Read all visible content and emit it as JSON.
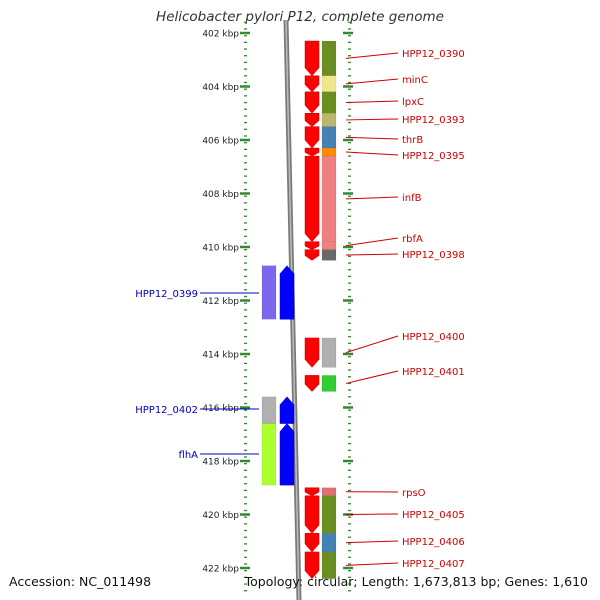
{
  "title": "Helicobacter pylori P12, complete genome",
  "accession": "Accession: NC_011498",
  "topology": "Topology: circular; Length: 1,673,813 bp; Genes: 1,610",
  "colors": {
    "forward_label": "#cc0000",
    "reverse_label": "#0000bb",
    "tick": "#338833",
    "forward_arrow": "#ff0000",
    "reverse_arrow": "#0000ff"
  },
  "scale": {
    "unit": "kbp",
    "ticks": [
      402,
      404,
      406,
      408,
      410,
      412,
      414,
      416,
      418,
      420,
      422
    ],
    "tick_labels": [
      "402 kbp",
      "404 kbp",
      "406 kbp",
      "408 kbp",
      "410 kbp",
      "412 kbp",
      "414 kbp",
      "416 kbp",
      "418 kbp",
      "420 kbp",
      "422 kbp"
    ]
  },
  "forward_genes": [
    {
      "label": "HPP12_0390",
      "start": 402.3,
      "end": 403.6,
      "color": "#6b8e23"
    },
    {
      "label": "minC",
      "start": 403.6,
      "end": 404.2,
      "color": "#f0e68c"
    },
    {
      "label": "lpxC",
      "start": 404.2,
      "end": 405.0,
      "color": "#6b8e23"
    },
    {
      "label": "HPP12_0393",
      "start": 405.0,
      "end": 405.5,
      "color": "#bdb76b"
    },
    {
      "label": "thrB",
      "start": 405.5,
      "end": 406.3,
      "color": "#4682b4"
    },
    {
      "label": "HPP12_0395",
      "start": 406.3,
      "end": 406.6,
      "color": "#ff8c00"
    },
    {
      "label": "infB",
      "start": 406.6,
      "end": 409.8,
      "color": "#f08080"
    },
    {
      "label": "rbfA",
      "start": 409.8,
      "end": 410.1,
      "color": "#f08080"
    },
    {
      "label": "HPP12_0398",
      "start": 410.1,
      "end": 410.5,
      "color": "#696969"
    },
    {
      "label": "HPP12_0400",
      "start": 413.4,
      "end": 414.5,
      "color": "#b0b0b0"
    },
    {
      "label": "HPP12_0401",
      "start": 414.8,
      "end": 415.4,
      "color": "#32cd32"
    },
    {
      "label": "rpsO",
      "start": 419.0,
      "end": 419.3,
      "color": "#e07070"
    },
    {
      "label": "HPP12_0405",
      "start": 419.3,
      "end": 420.7,
      "color": "#6b8e23"
    },
    {
      "label": "HPP12_0406",
      "start": 420.7,
      "end": 421.4,
      "color": "#4682b4"
    },
    {
      "label": "HPP12_0407",
      "start": 421.4,
      "end": 422.4,
      "color": "#6b8e23"
    }
  ],
  "reverse_genes": [
    {
      "label": "HPP12_0399",
      "start": 410.7,
      "end": 412.7,
      "color": "#7b68ee"
    },
    {
      "label": "HPP12_0402",
      "start": 415.6,
      "end": 416.6,
      "color": "#b0b0b0"
    },
    {
      "label": "flhA",
      "start": 416.6,
      "end": 418.9,
      "color": "#adff2f"
    }
  ]
}
